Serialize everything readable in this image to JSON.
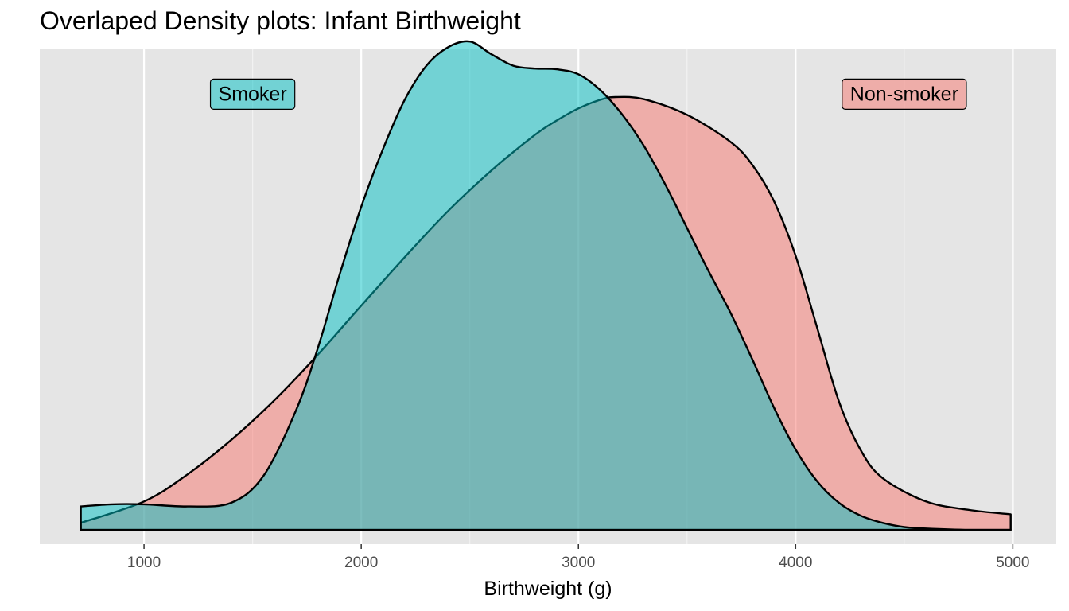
{
  "chart_data": {
    "type": "area",
    "title": "Overlaped Density plots: Infant Birthweight",
    "xlabel": "Birthweight (g)",
    "ylabel": "",
    "xlim": [
      520,
      5200
    ],
    "ylim": [
      -2e-05,
      0.000675
    ],
    "x_ticks": [
      1000,
      2000,
      3000,
      4000,
      5000
    ],
    "x_tick_labels": [
      "1000",
      "2000",
      "3000",
      "4000",
      "5000"
    ],
    "y_ticks_shown": false,
    "grid": true,
    "legend": "none",
    "fill_opacity": 0.5,
    "series": [
      {
        "name": "Non-smoker",
        "color": "#F8766D",
        "x": [
          709,
          1000,
          1200,
          1400,
          1600,
          1800,
          2000,
          2200,
          2400,
          2600,
          2800,
          2900,
          3000,
          3100,
          3170,
          3300,
          3500,
          3700,
          3800,
          3900,
          4000,
          4100,
          4200,
          4300,
          4400,
          4600,
          4800,
          4990
        ],
        "y": [
          1e-05,
          4e-05,
          7.8e-05,
          0.000126,
          0.000182,
          0.000246,
          0.000315,
          0.000383,
          0.000448,
          0.000505,
          0.000555,
          0.000575,
          0.000592,
          0.000604,
          0.000608,
          0.000605,
          0.000583,
          0.000545,
          0.000513,
          0.000462,
          0.000385,
          0.000283,
          0.00018,
          0.000112,
          7.3e-05,
          4e-05,
          2.8e-05,
          2.2e-05
        ]
      },
      {
        "name": "Smoker",
        "color": "#00BFC4",
        "x": [
          709,
          850,
          1000,
          1200,
          1400,
          1550,
          1700,
          1800,
          1900,
          2000,
          2100,
          2200,
          2300,
          2400,
          2500,
          2600,
          2700,
          2800,
          2900,
          3000,
          3100,
          3200,
          3300,
          3400,
          3500,
          3600,
          3700,
          3800,
          3900,
          4000,
          4100,
          4200,
          4300,
          4400,
          4500,
          4600,
          4800,
          4990
        ],
        "y": [
          3.3e-05,
          3.6e-05,
          3.6e-05,
          3.3e-05,
          3.8e-05,
          7.6e-05,
          0.000168,
          0.000255,
          0.000358,
          0.000454,
          0.000535,
          0.000604,
          0.000652,
          0.000678,
          0.000686,
          0.000668,
          0.000652,
          0.000648,
          0.000647,
          0.00064,
          0.000618,
          0.000584,
          0.00054,
          0.000485,
          0.000424,
          0.000363,
          0.000305,
          0.00024,
          0.000172,
          0.000113,
          6.8e-05,
          3.8e-05,
          2e-05,
          1e-05,
          4e-06,
          2e-06,
          0,
          0
        ]
      }
    ],
    "annotations": [
      {
        "label": "Smoker",
        "x": 1500,
        "y": 0.000612,
        "color": "#00BFC4"
      },
      {
        "label": "Non-smoker",
        "x": 4500,
        "y": 0.000612,
        "color": "#F8766D"
      }
    ]
  }
}
